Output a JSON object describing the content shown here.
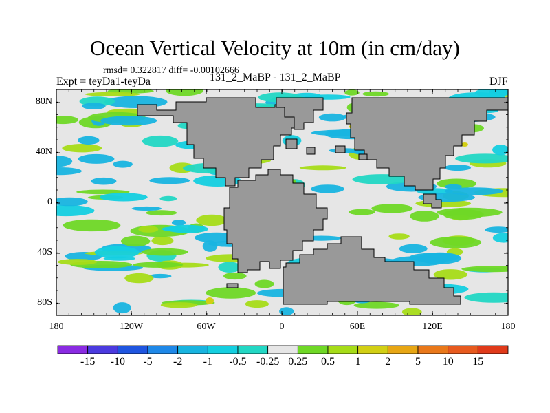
{
  "title": "Ocean Vertical Velocity at 10m (in cm/day)",
  "stats": "rmsd= 0.322817  diff= -0.00102666",
  "experiment": "Expt = teyDa1-teyDa",
  "subtitle": "131_2_MaBP - 131_2_MaBP",
  "season": "DJF",
  "y_ticks": [
    "80N",
    "40N",
    "0",
    "40S",
    "80S"
  ],
  "x_ticks": [
    "180",
    "120W",
    "60W",
    "0",
    "60E",
    "120E",
    "180"
  ],
  "colorbar": {
    "labels": [
      "-15",
      "-10",
      "-5",
      "-2",
      "-1",
      "-0.5",
      "-0.25",
      "0.25",
      "0.5",
      "1",
      "2",
      "5",
      "10",
      "15"
    ],
    "colors": [
      "#8a2be2",
      "#4b3adf",
      "#1f55e0",
      "#1e88e8",
      "#18b4e0",
      "#14cfe0",
      "#22d7c4",
      "#e6e6e6",
      "#6fd826",
      "#a6dc18",
      "#d2cf14",
      "#e7a614",
      "#e9781a",
      "#e75a1e",
      "#e03a1a"
    ]
  },
  "colors": {
    "land": "#999999",
    "ocean_neutral": "#e6e6e6",
    "frame": "#000000"
  }
}
